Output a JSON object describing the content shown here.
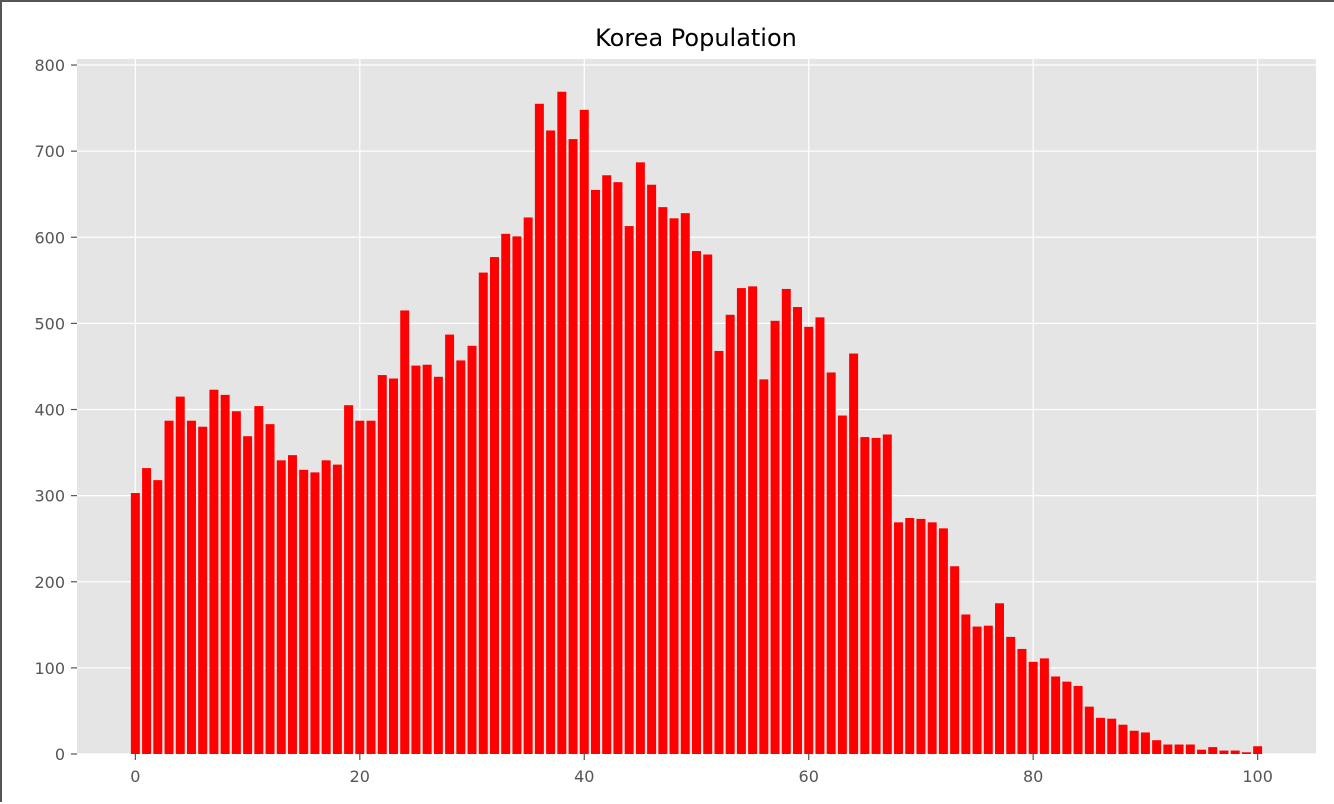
{
  "chart_data": {
    "type": "bar",
    "title": "Korea Population",
    "xlabel": "",
    "ylabel": "",
    "x": [
      0,
      1,
      2,
      3,
      4,
      5,
      6,
      7,
      8,
      9,
      10,
      11,
      12,
      13,
      14,
      15,
      16,
      17,
      18,
      19,
      20,
      21,
      22,
      23,
      24,
      25,
      26,
      27,
      28,
      29,
      30,
      31,
      32,
      33,
      34,
      35,
      36,
      37,
      38,
      39,
      40,
      41,
      42,
      43,
      44,
      45,
      46,
      47,
      48,
      49,
      50,
      51,
      52,
      53,
      54,
      55,
      56,
      57,
      58,
      59,
      60,
      61,
      62,
      63,
      64,
      65,
      66,
      67,
      68,
      69,
      70,
      71,
      72,
      73,
      74,
      75,
      76,
      77,
      78,
      79,
      80,
      81,
      82,
      83,
      84,
      85,
      86,
      87,
      88,
      89,
      90,
      91,
      92,
      93,
      94,
      95,
      96,
      97,
      98,
      99,
      100
    ],
    "values": [
      303,
      332,
      318,
      387,
      415,
      387,
      380,
      423,
      417,
      398,
      369,
      404,
      383,
      341,
      347,
      330,
      327,
      341,
      336,
      405,
      387,
      387,
      440,
      436,
      515,
      451,
      452,
      438,
      487,
      457,
      474,
      559,
      577,
      604,
      601,
      623,
      755,
      724,
      769,
      714,
      748,
      655,
      672,
      664,
      613,
      687,
      661,
      635,
      622,
      628,
      584,
      580,
      468,
      510,
      541,
      543,
      435,
      503,
      540,
      519,
      496,
      507,
      443,
      393,
      465,
      368,
      367,
      371,
      269,
      274,
      273,
      269,
      262,
      218,
      162,
      148,
      149,
      175,
      136,
      122,
      107,
      111,
      90,
      84,
      79,
      55,
      42,
      41,
      34,
      27,
      25,
      16,
      11,
      11,
      11,
      5,
      8,
      4,
      4,
      2,
      9
    ],
    "xlim": [
      -5.2,
      105.2
    ],
    "ylim": [
      0,
      807
    ],
    "x_ticks": [
      "0",
      "20",
      "40",
      "60",
      "80",
      "100"
    ],
    "y_ticks": [
      "0",
      "100",
      "200",
      "300",
      "400",
      "500",
      "600",
      "700",
      "800"
    ],
    "grid": true,
    "legend": "none",
    "colors": {
      "bar": "#ff0000",
      "plot_background": "#e5e5e5",
      "grid": "#ffffff",
      "tick_label": "#555555",
      "title": "#000000"
    }
  }
}
